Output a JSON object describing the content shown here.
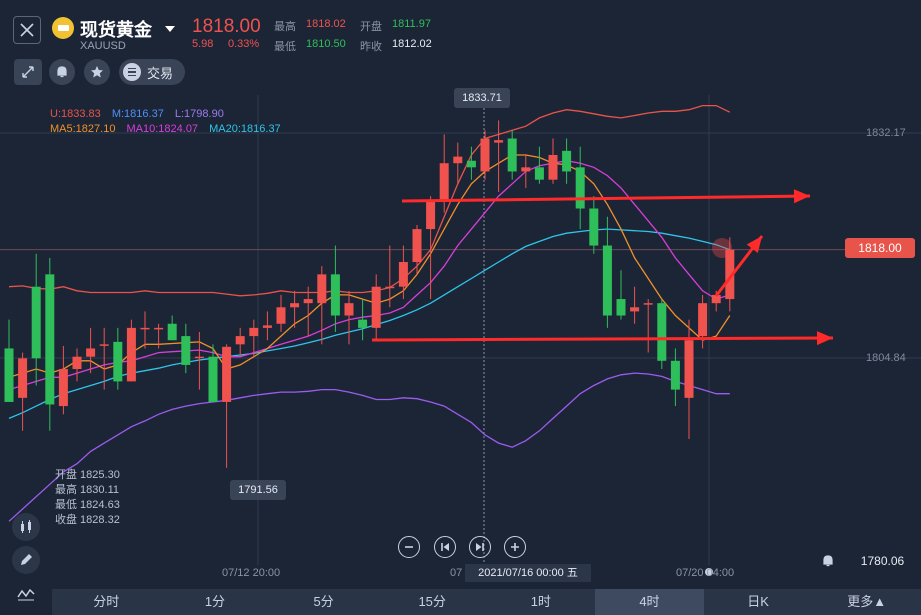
{
  "header": {
    "name": "现货黄金",
    "symbol": "XAUUSD",
    "price": "1818.00",
    "change": "5.98",
    "change_pct": "0.33%",
    "high_label": "最高",
    "high": "1818.02",
    "open_label": "开盘",
    "open": "1811.97",
    "low_label": "最低",
    "low": "1810.50",
    "prev_label": "昨收",
    "prev": "1812.02"
  },
  "toolbar": {
    "trade_label": "交易"
  },
  "indicators": {
    "upper": "U:1833.83",
    "mid": "M:1816.37",
    "lower": "L:1798.90",
    "ma5": "MA5:1827.10",
    "ma10": "MA10:1824.07",
    "ma20": "MA20:1816.37"
  },
  "ohlc": {
    "open": "开盘 1825.30",
    "high": "最高 1830.11",
    "low": "最低 1824.63",
    "close": "收盘 1828.32"
  },
  "price_labels": {
    "top": "1832.17",
    "mid": "1804.84",
    "current": "1818.00",
    "bottom": "1780.06",
    "peak": "1833.71",
    "trough": "1791.56"
  },
  "time_axis": {
    "t1": "07/12 20:00",
    "t2": "07",
    "crosshair": "2021/07/16 00:00 五",
    "t3": "07/20 04:00"
  },
  "tabs": [
    "分时",
    "1分",
    "5分",
    "15分",
    "1时",
    "4时",
    "日K",
    "更多▲"
  ],
  "colors": {
    "up": "#f0524e",
    "down": "#2fbf5a",
    "boll_upper": "#e8544a",
    "boll_lower": "#9b5cf0",
    "ma5": "#f0902a",
    "ma10": "#d83ed8",
    "ma20": "#2fc4e8"
  },
  "chart_data": {
    "type": "candlestick",
    "candles": [
      {
        "o": 1806.0,
        "h": 1809.5,
        "l": 1799.5,
        "c": 1799.5
      },
      {
        "o": 1800.0,
        "h": 1805.5,
        "l": 1796.0,
        "c": 1804.8
      },
      {
        "o": 1813.5,
        "h": 1817.5,
        "l": 1801.5,
        "c": 1804.8
      },
      {
        "o": 1815.0,
        "h": 1817.0,
        "l": 1796.0,
        "c": 1799.2
      },
      {
        "o": 1799.0,
        "h": 1806.3,
        "l": 1798.0,
        "c": 1803.5
      },
      {
        "o": 1803.5,
        "h": 1806.0,
        "l": 1802.0,
        "c": 1805.0
      },
      {
        "o": 1805.0,
        "h": 1808.5,
        "l": 1803.0,
        "c": 1806.0
      },
      {
        "o": 1806.5,
        "h": 1808.5,
        "l": 1801.0,
        "c": 1806.5
      },
      {
        "o": 1806.8,
        "h": 1808.5,
        "l": 1801.0,
        "c": 1802.0
      },
      {
        "o": 1802.0,
        "h": 1809.5,
        "l": 1802.0,
        "c": 1808.5
      },
      {
        "o": 1808.5,
        "h": 1810.5,
        "l": 1806.0,
        "c": 1808.5
      },
      {
        "o": 1808.5,
        "h": 1809.0,
        "l": 1806.0,
        "c": 1808.5
      },
      {
        "o": 1809.0,
        "h": 1810.0,
        "l": 1807.0,
        "c": 1807.0
      },
      {
        "o": 1807.5,
        "h": 1809.0,
        "l": 1803.0,
        "c": 1804.0
      },
      {
        "o": 1805.0,
        "h": 1808.0,
        "l": 1801.0,
        "c": 1805.0
      },
      {
        "o": 1805.0,
        "h": 1806.5,
        "l": 1799.5,
        "c": 1799.5
      },
      {
        "o": 1799.5,
        "h": 1806.5,
        "l": 1791.5,
        "c": 1806.2
      },
      {
        "o": 1806.5,
        "h": 1808.5,
        "l": 1805.0,
        "c": 1807.5
      },
      {
        "o": 1807.5,
        "h": 1809.5,
        "l": 1805.0,
        "c": 1808.5
      },
      {
        "o": 1808.5,
        "h": 1810.5,
        "l": 1807.0,
        "c": 1808.8
      },
      {
        "o": 1809.0,
        "h": 1812.5,
        "l": 1808.0,
        "c": 1811.0
      },
      {
        "o": 1811.0,
        "h": 1813.0,
        "l": 1808.5,
        "c": 1811.5
      },
      {
        "o": 1811.5,
        "h": 1813.5,
        "l": 1807.5,
        "c": 1812.0
      },
      {
        "o": 1811.5,
        "h": 1816.0,
        "l": 1806.5,
        "c": 1815.0
      },
      {
        "o": 1815.0,
        "h": 1818.5,
        "l": 1808.0,
        "c": 1810.0
      },
      {
        "o": 1810.0,
        "h": 1813.0,
        "l": 1806.5,
        "c": 1811.5
      },
      {
        "o": 1809.5,
        "h": 1812.0,
        "l": 1807.0,
        "c": 1808.5
      },
      {
        "o": 1808.5,
        "h": 1815.0,
        "l": 1807.0,
        "c": 1813.5
      },
      {
        "o": 1813.5,
        "h": 1818.5,
        "l": 1811.0,
        "c": 1813.5
      },
      {
        "o": 1813.5,
        "h": 1818.5,
        "l": 1812.0,
        "c": 1816.5
      },
      {
        "o": 1816.5,
        "h": 1821.0,
        "l": 1815.0,
        "c": 1820.5
      },
      {
        "o": 1820.5,
        "h": 1824.5,
        "l": 1812.0,
        "c": 1824.0
      },
      {
        "o": 1824.0,
        "h": 1832.0,
        "l": 1822.5,
        "c": 1828.5
      },
      {
        "o": 1828.5,
        "h": 1831.0,
        "l": 1826.0,
        "c": 1829.3
      },
      {
        "o": 1828.8,
        "h": 1830.5,
        "l": 1826.5,
        "c": 1828.0
      },
      {
        "o": 1827.5,
        "h": 1832.5,
        "l": 1826.5,
        "c": 1831.5
      },
      {
        "o": 1831.0,
        "h": 1833.7,
        "l": 1825.0,
        "c": 1831.3
      },
      {
        "o": 1831.5,
        "h": 1832.5,
        "l": 1826.5,
        "c": 1827.5
      },
      {
        "o": 1827.5,
        "h": 1829.5,
        "l": 1825.5,
        "c": 1828.0
      },
      {
        "o": 1828.0,
        "h": 1830.5,
        "l": 1826.0,
        "c": 1826.5
      },
      {
        "o": 1826.5,
        "h": 1831.5,
        "l": 1826.0,
        "c": 1829.5
      },
      {
        "o": 1830.0,
        "h": 1831.5,
        "l": 1826.0,
        "c": 1827.5
      },
      {
        "o": 1828.0,
        "h": 1830.5,
        "l": 1820.5,
        "c": 1823.0
      },
      {
        "o": 1823.0,
        "h": 1824.5,
        "l": 1817.5,
        "c": 1818.5
      },
      {
        "o": 1818.5,
        "h": 1822.0,
        "l": 1808.5,
        "c": 1810.0
      },
      {
        "o": 1812.0,
        "h": 1815.5,
        "l": 1809.5,
        "c": 1810.0
      },
      {
        "o": 1810.5,
        "h": 1813.5,
        "l": 1809.0,
        "c": 1811.0
      },
      {
        "o": 1811.5,
        "h": 1812.0,
        "l": 1805.5,
        "c": 1811.5
      },
      {
        "o": 1811.5,
        "h": 1812.0,
        "l": 1803.5,
        "c": 1804.5
      },
      {
        "o": 1804.5,
        "h": 1806.0,
        "l": 1799.0,
        "c": 1801.0
      },
      {
        "o": 1800.0,
        "h": 1809.5,
        "l": 1795.0,
        "c": 1807.0
      },
      {
        "o": 1807.5,
        "h": 1812.5,
        "l": 1806.0,
        "c": 1811.5
      },
      {
        "o": 1811.5,
        "h": 1813.0,
        "l": 1810.5,
        "c": 1812.5
      },
      {
        "o": 1812.0,
        "h": 1819.5,
        "l": 1810.5,
        "c": 1818.0
      }
    ],
    "boll_upper": [
      1813.5,
      1813.6,
      1813.3,
      1813.2,
      1813.5,
      1813.0,
      1812.8,
      1812.8,
      1812.8,
      1812.8,
      1813.0,
      1812.8,
      1812.8,
      1812.8,
      1812.8,
      1812.8,
      1812.6,
      1812.4,
      1812.5,
      1812.7,
      1813.0,
      1812.8,
      1812.8,
      1812.8,
      1813.0,
      1812.8,
      1812.8,
      1813.0,
      1813.4,
      1814.5,
      1816.0,
      1818.0,
      1822.0,
      1826.0,
      1829.5,
      1831.5,
      1832.0,
      1832.5,
      1833.0,
      1834.0,
      1834.6,
      1835.0,
      1834.8,
      1834.5,
      1834.2,
      1834.0,
      1834.3,
      1834.6,
      1834.8,
      1834.8,
      1835.0,
      1835.5,
      1835.5,
      1834.7
    ],
    "boll_mid": [
      1800.5,
      1801.0,
      1801.6,
      1802.0,
      1802.2,
      1802.6,
      1803.0,
      1803.3,
      1803.5,
      1803.8,
      1804.0,
      1804.2,
      1804.4,
      1804.5,
      1804.7,
      1804.8,
      1805.0,
      1805.2,
      1805.4,
      1805.6,
      1805.9,
      1806.0,
      1806.3,
      1806.7,
      1807.0,
      1807.4,
      1807.8,
      1808.3,
      1808.8,
      1809.4,
      1810.1,
      1810.8,
      1811.6,
      1812.6,
      1813.6,
      1814.6,
      1815.6,
      1816.6,
      1817.5,
      1818.3,
      1819.0,
      1819.6,
      1820.0,
      1820.3,
      1820.5,
      1820.6,
      1820.6,
      1820.5,
      1820.3,
      1820.0,
      1819.8,
      1819.5,
      1819.0,
      1818.3
    ],
    "boll_lower": [
      1785.0,
      1786.5,
      1788.0,
      1789.5,
      1791.0,
      1792.0,
      1793.5,
      1794.5,
      1795.5,
      1796.5,
      1797.2,
      1798.0,
      1798.6,
      1799.0,
      1799.3,
      1799.5,
      1799.7,
      1800.0,
      1800.3,
      1800.5,
      1800.7,
      1800.7,
      1800.8,
      1801.0,
      1801.0,
      1800.7,
      1800.3,
      1799.8,
      1799.8,
      1800.0,
      1799.9,
      1799.5,
      1799.0,
      1798.0,
      1797.0,
      1795.5,
      1794.5,
      1794.0,
      1794.8,
      1796.0,
      1797.5,
      1799.0,
      1800.5,
      1801.5,
      1802.3,
      1802.8,
      1803.0,
      1802.9,
      1802.6,
      1802.0,
      1801.5,
      1801.0,
      1800.5,
      1800.5
    ],
    "ma5": [
      1802.5,
      1803.0,
      1803.5,
      1803.0,
      1803.5,
      1804.5,
      1804.5,
      1803.5,
      1804.0,
      1805.5,
      1806.5,
      1806.5,
      1806.6,
      1806.7,
      1806.8,
      1806.0,
      1803.5,
      1804.0,
      1805.0,
      1806.0,
      1807.5,
      1809.0,
      1810.0,
      1811.5,
      1812.5,
      1812.5,
      1812.0,
      1811.5,
      1812.0,
      1813.0,
      1815.0,
      1817.5,
      1820.5,
      1823.5,
      1826.0,
      1827.5,
      1828.5,
      1829.5,
      1829.5,
      1829.2,
      1828.5,
      1828.3,
      1827.5,
      1826.0,
      1823.5,
      1820.5,
      1817.0,
      1814.5,
      1812.0,
      1810.0,
      1808.5,
      1807.0,
      1807.5,
      1810.0
    ],
    "ma10": [
      1801.0,
      1801.5,
      1802.0,
      1802.5,
      1802.5,
      1803.0,
      1803.5,
      1804.0,
      1804.3,
      1804.5,
      1805.0,
      1805.5,
      1805.6,
      1805.7,
      1805.8,
      1805.5,
      1805.0,
      1805.0,
      1805.5,
      1806.0,
      1806.5,
      1807.0,
      1807.5,
      1808.2,
      1809.0,
      1809.5,
      1809.8,
      1810.0,
      1810.3,
      1811.0,
      1812.5,
      1814.0,
      1816.0,
      1818.5,
      1820.5,
      1822.5,
      1824.5,
      1826.0,
      1827.5,
      1828.2,
      1828.5,
      1828.8,
      1828.5,
      1828.0,
      1827.0,
      1825.5,
      1823.5,
      1821.5,
      1819.5,
      1817.0,
      1815.0,
      1813.0,
      1812.0,
      1812.5
    ],
    "ma20": [
      1797.5,
      1798.2,
      1799.0,
      1799.8,
      1800.5,
      1801.0,
      1801.5,
      1802.0,
      1802.6,
      1803.0,
      1803.3,
      1803.6,
      1804.0,
      1804.3,
      1804.6,
      1804.8,
      1805.0,
      1805.2,
      1805.4,
      1805.7,
      1806.0,
      1806.3,
      1806.7,
      1807.1,
      1807.6,
      1808.0,
      1808.4,
      1808.9,
      1809.4,
      1810.0,
      1810.7,
      1811.5,
      1812.5,
      1813.5,
      1814.5,
      1815.5,
      1816.5,
      1817.5,
      1818.4,
      1819.0,
      1819.6,
      1820.0,
      1820.2,
      1820.4,
      1820.5,
      1820.4,
      1820.3,
      1820.2,
      1820.0,
      1819.7,
      1819.4,
      1819.0,
      1818.6,
      1818.0
    ]
  }
}
